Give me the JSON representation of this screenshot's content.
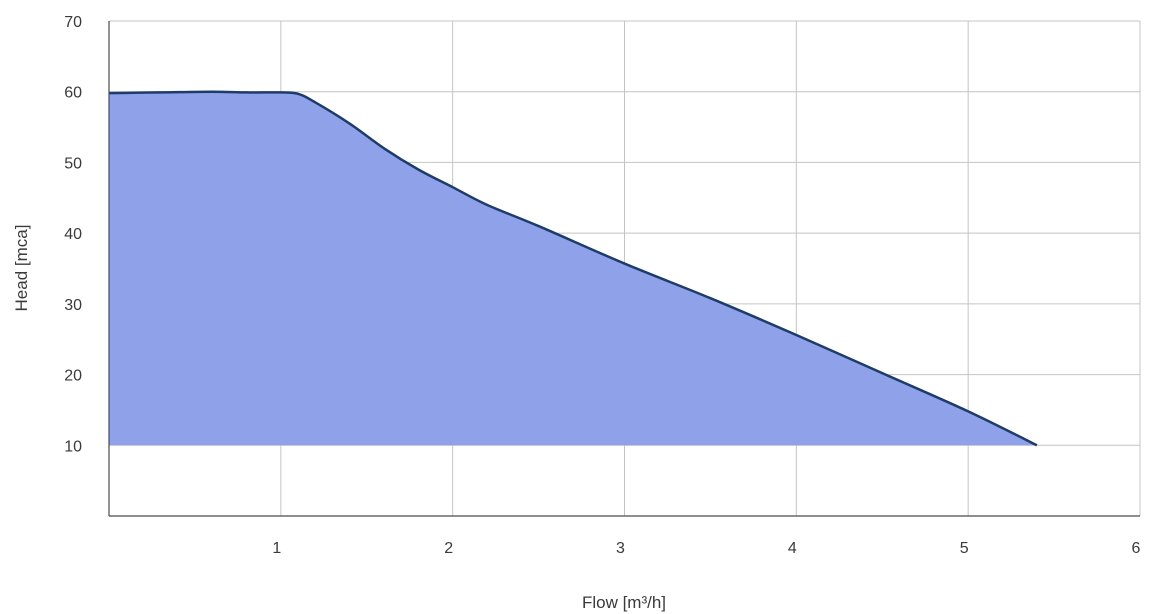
{
  "chart_data": {
    "type": "area",
    "title": "",
    "xlabel": "Flow [m³/h]",
    "ylabel": "Head [mca]",
    "xlim": [
      0,
      6
    ],
    "ylim": [
      0,
      70
    ],
    "x_ticks": [
      1,
      2,
      3,
      4,
      5,
      6
    ],
    "y_ticks": [
      10,
      20,
      30,
      40,
      50,
      60,
      70
    ],
    "grid": true,
    "fill_baseline": 10,
    "series": [
      {
        "x": [
          0,
          0.3,
          0.6,
          0.8,
          1.0,
          1.1,
          1.2,
          1.4,
          1.6,
          1.8,
          2.0,
          2.2,
          2.5,
          3.0,
          3.5,
          4.0,
          4.5,
          5.0,
          5.4
        ],
        "y": [
          59.8,
          59.9,
          60.0,
          59.9,
          59.9,
          59.7,
          58.5,
          55.5,
          52.0,
          49.0,
          46.5,
          44.0,
          41.0,
          35.7,
          30.8,
          25.6,
          20.2,
          14.8,
          10.0
        ]
      }
    ],
    "colors": {
      "fill": "#8fa1e8",
      "line": "#1d3c6e",
      "grid": "#c4c4c4",
      "axis": "#4a4a4a"
    }
  }
}
